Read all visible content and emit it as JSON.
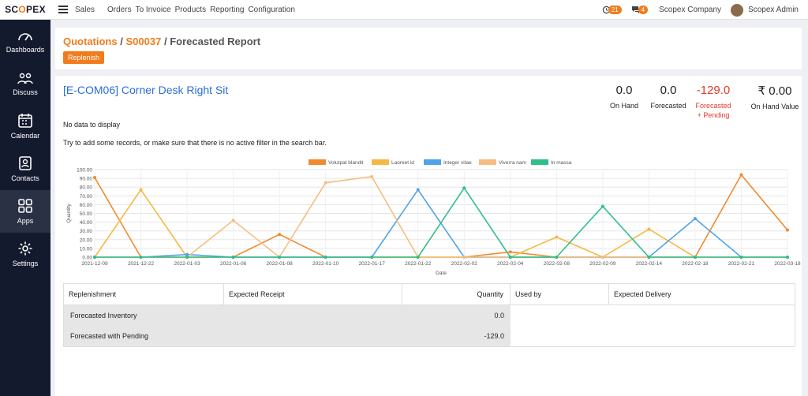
{
  "topbar": {
    "logo_left": "SC",
    "logo_mid": "O",
    "logo_right": "PEX",
    "app_name": "Sales",
    "nav": [
      "Orders",
      "To Invoice",
      "Products",
      "Reporting",
      "Configuration"
    ],
    "activity_count": "21",
    "messages_count": "4",
    "company": "Scopex Company",
    "user": "Scopex Admin"
  },
  "sidebar": {
    "items": [
      {
        "label": "Dashboards",
        "icon": "gauge-icon"
      },
      {
        "label": "Discuss",
        "icon": "discuss-icon"
      },
      {
        "label": "Calendar",
        "icon": "calendar-icon"
      },
      {
        "label": "Contacts",
        "icon": "contacts-icon"
      },
      {
        "label": "Apps",
        "icon": "apps-icon"
      },
      {
        "label": "Settings",
        "icon": "gear-icon"
      }
    ]
  },
  "breadcrumb": {
    "quotations": "Quotations",
    "sep1": "/",
    "order": "S00037",
    "sep2": "/",
    "current": "Forecasted Report"
  },
  "actions": {
    "replenish": "Replenish"
  },
  "product": {
    "title": "[E-COM06] Corner Desk Right Sit",
    "stats": [
      {
        "value": "0.0",
        "label": "On Hand"
      },
      {
        "value": "0.0",
        "label": "Forecasted"
      },
      {
        "value": "-129.0",
        "label": "Forecasted",
        "label2": "+ Pending"
      },
      {
        "value": "₹ 0.00",
        "label": "On Hand Value"
      }
    ]
  },
  "messages": {
    "no_data": "No data to display",
    "hint": "Try to add some records, or make sure that there is no active filter in the search bar."
  },
  "chart_data": {
    "type": "line",
    "xlabel": "Date",
    "ylabel": "Quantity",
    "ylim": [
      0,
      100
    ],
    "yticks": [
      "0.00",
      "10.00",
      "20.00",
      "30.00",
      "40.00",
      "50.00",
      "60.00",
      "70.00",
      "80.00",
      "90.00",
      "100.00"
    ],
    "categories": [
      "2021-12-09",
      "2021-12-22",
      "2022-01-03",
      "2022-01-06",
      "2022-01-08",
      "2022-01-10",
      "2022-01-17",
      "2022-01-22",
      "2022-02-02",
      "2022-02-04",
      "2022-02-08",
      "2022-02-09",
      "2022-02-14",
      "2022-02-18",
      "2022-02-21",
      "2022-03-18"
    ],
    "legend_position": "top",
    "series": [
      {
        "name": "Volutpat blandit",
        "color": "#f08a2c",
        "values": [
          91,
          0,
          0,
          0,
          26,
          0,
          0,
          0,
          0,
          6,
          0,
          0,
          0,
          0,
          94,
          31
        ]
      },
      {
        "name": "Laoreet id",
        "color": "#f5b942",
        "values": [
          0,
          77,
          0,
          0,
          0,
          0,
          0,
          0,
          0,
          0,
          23,
          0,
          32,
          0,
          0,
          0
        ]
      },
      {
        "name": "Integer vitae",
        "color": "#4fa3e8",
        "values": [
          0,
          0,
          3,
          0,
          0,
          0,
          0,
          77,
          0,
          0,
          0,
          0,
          0,
          44,
          0,
          0
        ]
      },
      {
        "name": "Viverra nam",
        "color": "#f7bd80",
        "values": [
          0,
          0,
          0,
          42,
          0,
          85,
          92,
          0,
          0,
          0,
          0,
          0,
          0,
          0,
          0,
          0
        ]
      },
      {
        "name": "In massa",
        "color": "#2fbf8a",
        "values": [
          0,
          0,
          0,
          0,
          0,
          0,
          0,
          0,
          79,
          0,
          0,
          58,
          0,
          0,
          0,
          0
        ]
      }
    ]
  },
  "table": {
    "headers": [
      "Replenishment",
      "Expected Receipt",
      "Quantity",
      "Used by",
      "Expected Delivery"
    ],
    "rows": [
      {
        "label": "Forecasted Inventory",
        "quantity": "0.0"
      },
      {
        "label": "Forecasted with Pending",
        "quantity": "-129.0"
      }
    ]
  }
}
